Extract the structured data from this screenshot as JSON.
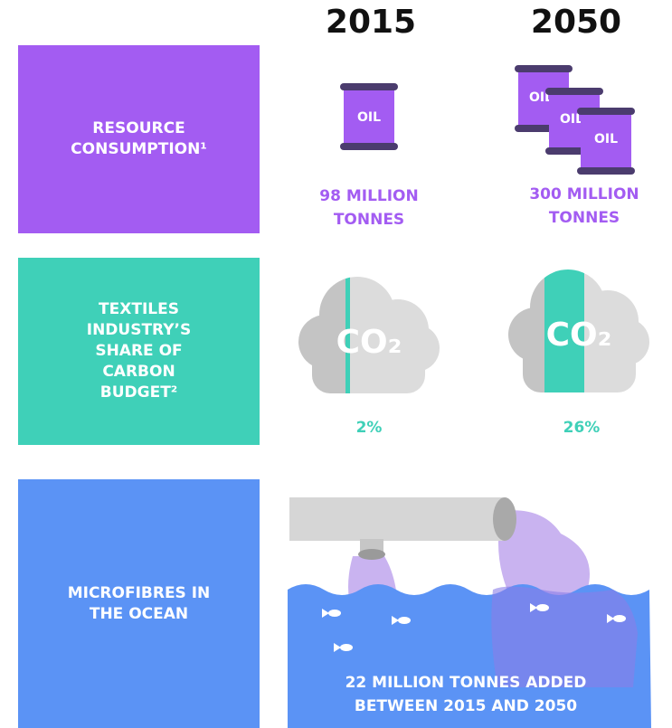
{
  "header": {
    "years": [
      "2015",
      "2050"
    ]
  },
  "rows": [
    {
      "label": "RESOURCE CONSUMPTION¹",
      "icon_text": "OIL",
      "values": [
        "98 MILLION TONNES",
        "300 MILLION TONNES"
      ]
    },
    {
      "label": "TEXTILES INDUSTRY’S SHARE OF CARBON BUDGET²",
      "icon_text": "CO₂",
      "values": [
        "2%",
        "26%"
      ]
    },
    {
      "label": "MICROFIBRES IN THE OCEAN",
      "caption": "22 MILLION TONNES ADDED BETWEEN 2015 AND 2050"
    }
  ]
}
